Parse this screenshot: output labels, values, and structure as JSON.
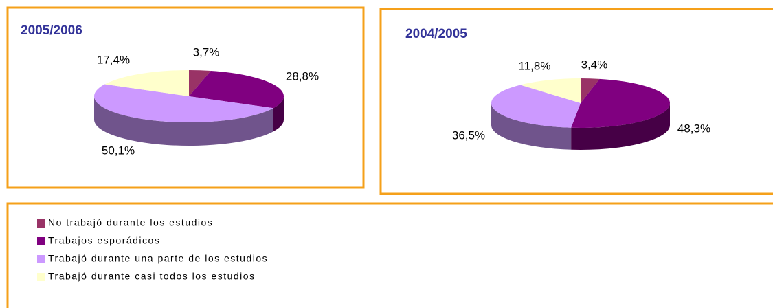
{
  "chart_data": [
    {
      "type": "pie",
      "title": "2005/2006",
      "values": [
        3.7,
        28.8,
        50.1,
        17.4
      ],
      "value_labels": [
        "3,7%",
        "28,8%",
        "50,1%",
        "17,4%"
      ]
    },
    {
      "type": "pie",
      "title": "2004/2005",
      "values": [
        3.4,
        48.3,
        36.5,
        11.8
      ],
      "value_labels": [
        "3,4%",
        "48,3%",
        "36,5%",
        "11,8%"
      ]
    }
  ],
  "legend": {
    "categories": [
      "No trabajó durante los estudios",
      "Trabajos esporádicos",
      "Trabajó durante una parte de los estudios",
      "Trabajó durante casi todos los estudios"
    ],
    "colors": [
      "#993366",
      "#800080",
      "#cc99ff",
      "#ffffcc"
    ]
  }
}
